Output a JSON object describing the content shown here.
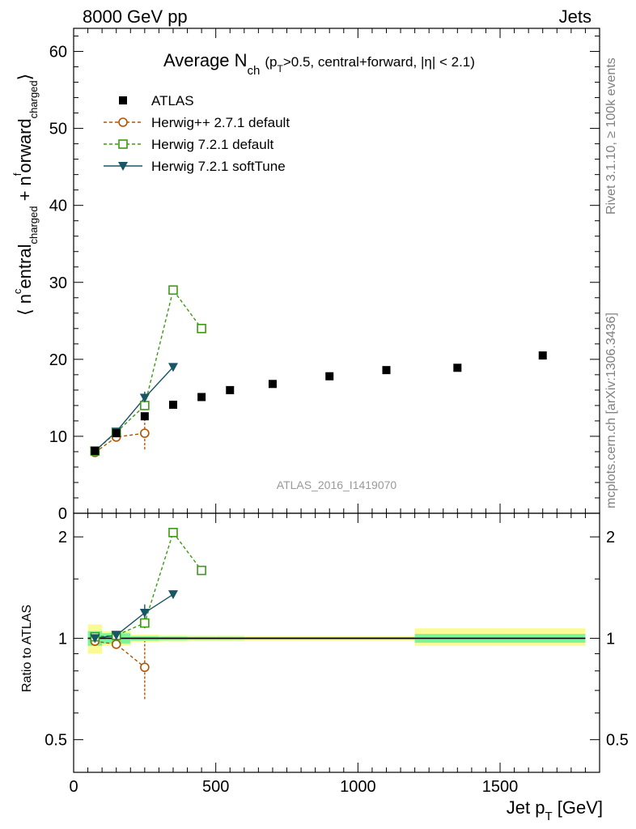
{
  "header": {
    "left": "8000 GeV pp",
    "right": "Jets"
  },
  "side": {
    "rivet": "Rivet 3.1.10, ≥ 100k events",
    "mcplots": "mcplots.cern.ch [arXiv:1306.3436]"
  },
  "plot_title": {
    "main": "Average N",
    "sub": "ch",
    "rest_open": "(p",
    "rest_sub": "T",
    "rest_close": ">0.5, central+forward, |η| < 2.1)"
  },
  "ylabel_main": {
    "a": "⟨ n",
    "b": "c",
    "c": "entral",
    "d": "charged",
    "e": " + n",
    "f": "f",
    "g": "orward",
    "h": "charged",
    "i": "⟩"
  },
  "ylabel_ratio": "Ratio to ATLAS",
  "xlabel": {
    "main": "Jet p",
    "sub": "T",
    "unit": " [GeV]"
  },
  "watermark": "ATLAS_2016_I1419070",
  "colors": {
    "atlas": "#000000",
    "herwigpp": "#b25400",
    "herwig721": "#3c9a12",
    "softtune": "#1a5566",
    "band_inner": "#7cf59a",
    "band_outer": "#fbfb96"
  },
  "chart_data": [
    {
      "type": "scatter",
      "panel": "main",
      "xlim": [
        0,
        1850
      ],
      "ylim": [
        0,
        63
      ],
      "yticks": [
        0,
        10,
        20,
        30,
        40,
        50,
        60
      ],
      "legend_position": "top-left",
      "series": [
        {
          "name": "ATLAS",
          "marker": "filled-square",
          "x": [
            75,
            150,
            250,
            350,
            450,
            550,
            700,
            900,
            1100,
            1350,
            1650
          ],
          "y": [
            8.1,
            10.4,
            12.6,
            14.1,
            15.1,
            16.0,
            16.8,
            17.8,
            18.6,
            18.9,
            20.5
          ]
        },
        {
          "name": "Herwig++ 2.7.1 default",
          "marker": "open-circle",
          "line": "dashed",
          "x": [
            75,
            150,
            250
          ],
          "y": [
            7.9,
            9.9,
            10.4
          ],
          "yerr": [
            0.3,
            0.3,
            2.1
          ]
        },
        {
          "name": "Herwig 7.2.1 default",
          "marker": "open-square",
          "line": "dashed",
          "x": [
            75,
            150,
            250,
            350,
            450
          ],
          "y": [
            8.1,
            10.5,
            14.0,
            29.0,
            24.0
          ],
          "yerr": [
            0.2,
            0.2,
            0.6,
            0,
            0
          ]
        },
        {
          "name": "Herwig 7.2.1 softTune",
          "marker": "filled-triangle-down",
          "line": "solid",
          "x": [
            75,
            150,
            250,
            350
          ],
          "y": [
            8.1,
            10.6,
            15.0,
            19.0
          ],
          "yerr": [
            0.2,
            0.2,
            0.8,
            0
          ]
        }
      ]
    },
    {
      "type": "scatter",
      "panel": "ratio",
      "xlim": [
        0,
        1850
      ],
      "xticks": [
        0,
        500,
        1000,
        1500
      ],
      "ylim": [
        0.4,
        2.35
      ],
      "yticks": [
        0.5,
        1,
        2
      ],
      "y_scale": "log",
      "reference_line": 1,
      "bands": [
        {
          "x": [
            50,
            100
          ],
          "inner": [
            0.95,
            1.05
          ],
          "outer": [
            0.9,
            1.1
          ]
        },
        {
          "x": [
            100,
            200
          ],
          "inner": [
            0.965,
            1.035
          ],
          "outer": [
            0.95,
            1.05
          ]
        },
        {
          "x": [
            200,
            300
          ],
          "inner": [
            0.985,
            1.015
          ],
          "outer": [
            0.975,
            1.025
          ]
        },
        {
          "x": [
            300,
            400
          ],
          "inner": [
            0.988,
            1.012
          ],
          "outer": [
            0.978,
            1.022
          ]
        },
        {
          "x": [
            400,
            500
          ],
          "inner": [
            0.99,
            1.01
          ],
          "outer": [
            0.98,
            1.02
          ]
        },
        {
          "x": [
            500,
            600
          ],
          "inner": [
            0.99,
            1.01
          ],
          "outer": [
            0.98,
            1.02
          ]
        },
        {
          "x": [
            600,
            800
          ],
          "inner": [
            0.992,
            1.008
          ],
          "outer": [
            0.985,
            1.015
          ]
        },
        {
          "x": [
            800,
            1000
          ],
          "inner": [
            0.992,
            1.008
          ],
          "outer": [
            0.985,
            1.015
          ]
        },
        {
          "x": [
            1000,
            1200
          ],
          "inner": [
            0.992,
            1.008
          ],
          "outer": [
            0.985,
            1.015
          ]
        },
        {
          "x": [
            1200,
            1500
          ],
          "inner": [
            0.97,
            1.03
          ],
          "outer": [
            0.95,
            1.07
          ]
        },
        {
          "x": [
            1500,
            1800
          ],
          "inner": [
            0.97,
            1.03
          ],
          "outer": [
            0.95,
            1.07
          ]
        }
      ],
      "series": [
        {
          "name": "Herwig++ 2.7.1 default",
          "x": [
            75,
            150,
            250
          ],
          "y": [
            0.98,
            0.96,
            0.82
          ],
          "yerr": [
            0.02,
            0.02,
            0.16
          ]
        },
        {
          "name": "Herwig 7.2.1 default",
          "x": [
            75,
            150,
            250,
            350,
            450
          ],
          "y": [
            1.01,
            1.02,
            1.11,
            2.06,
            1.59
          ],
          "yerr": [
            0.02,
            0.02,
            0.04,
            0,
            0
          ]
        },
        {
          "name": "Herwig 7.2.1 softTune",
          "x": [
            75,
            150,
            250,
            350
          ],
          "y": [
            1.0,
            1.02,
            1.19,
            1.35
          ],
          "yerr": [
            0.02,
            0.02,
            0.07,
            0
          ]
        }
      ]
    }
  ]
}
